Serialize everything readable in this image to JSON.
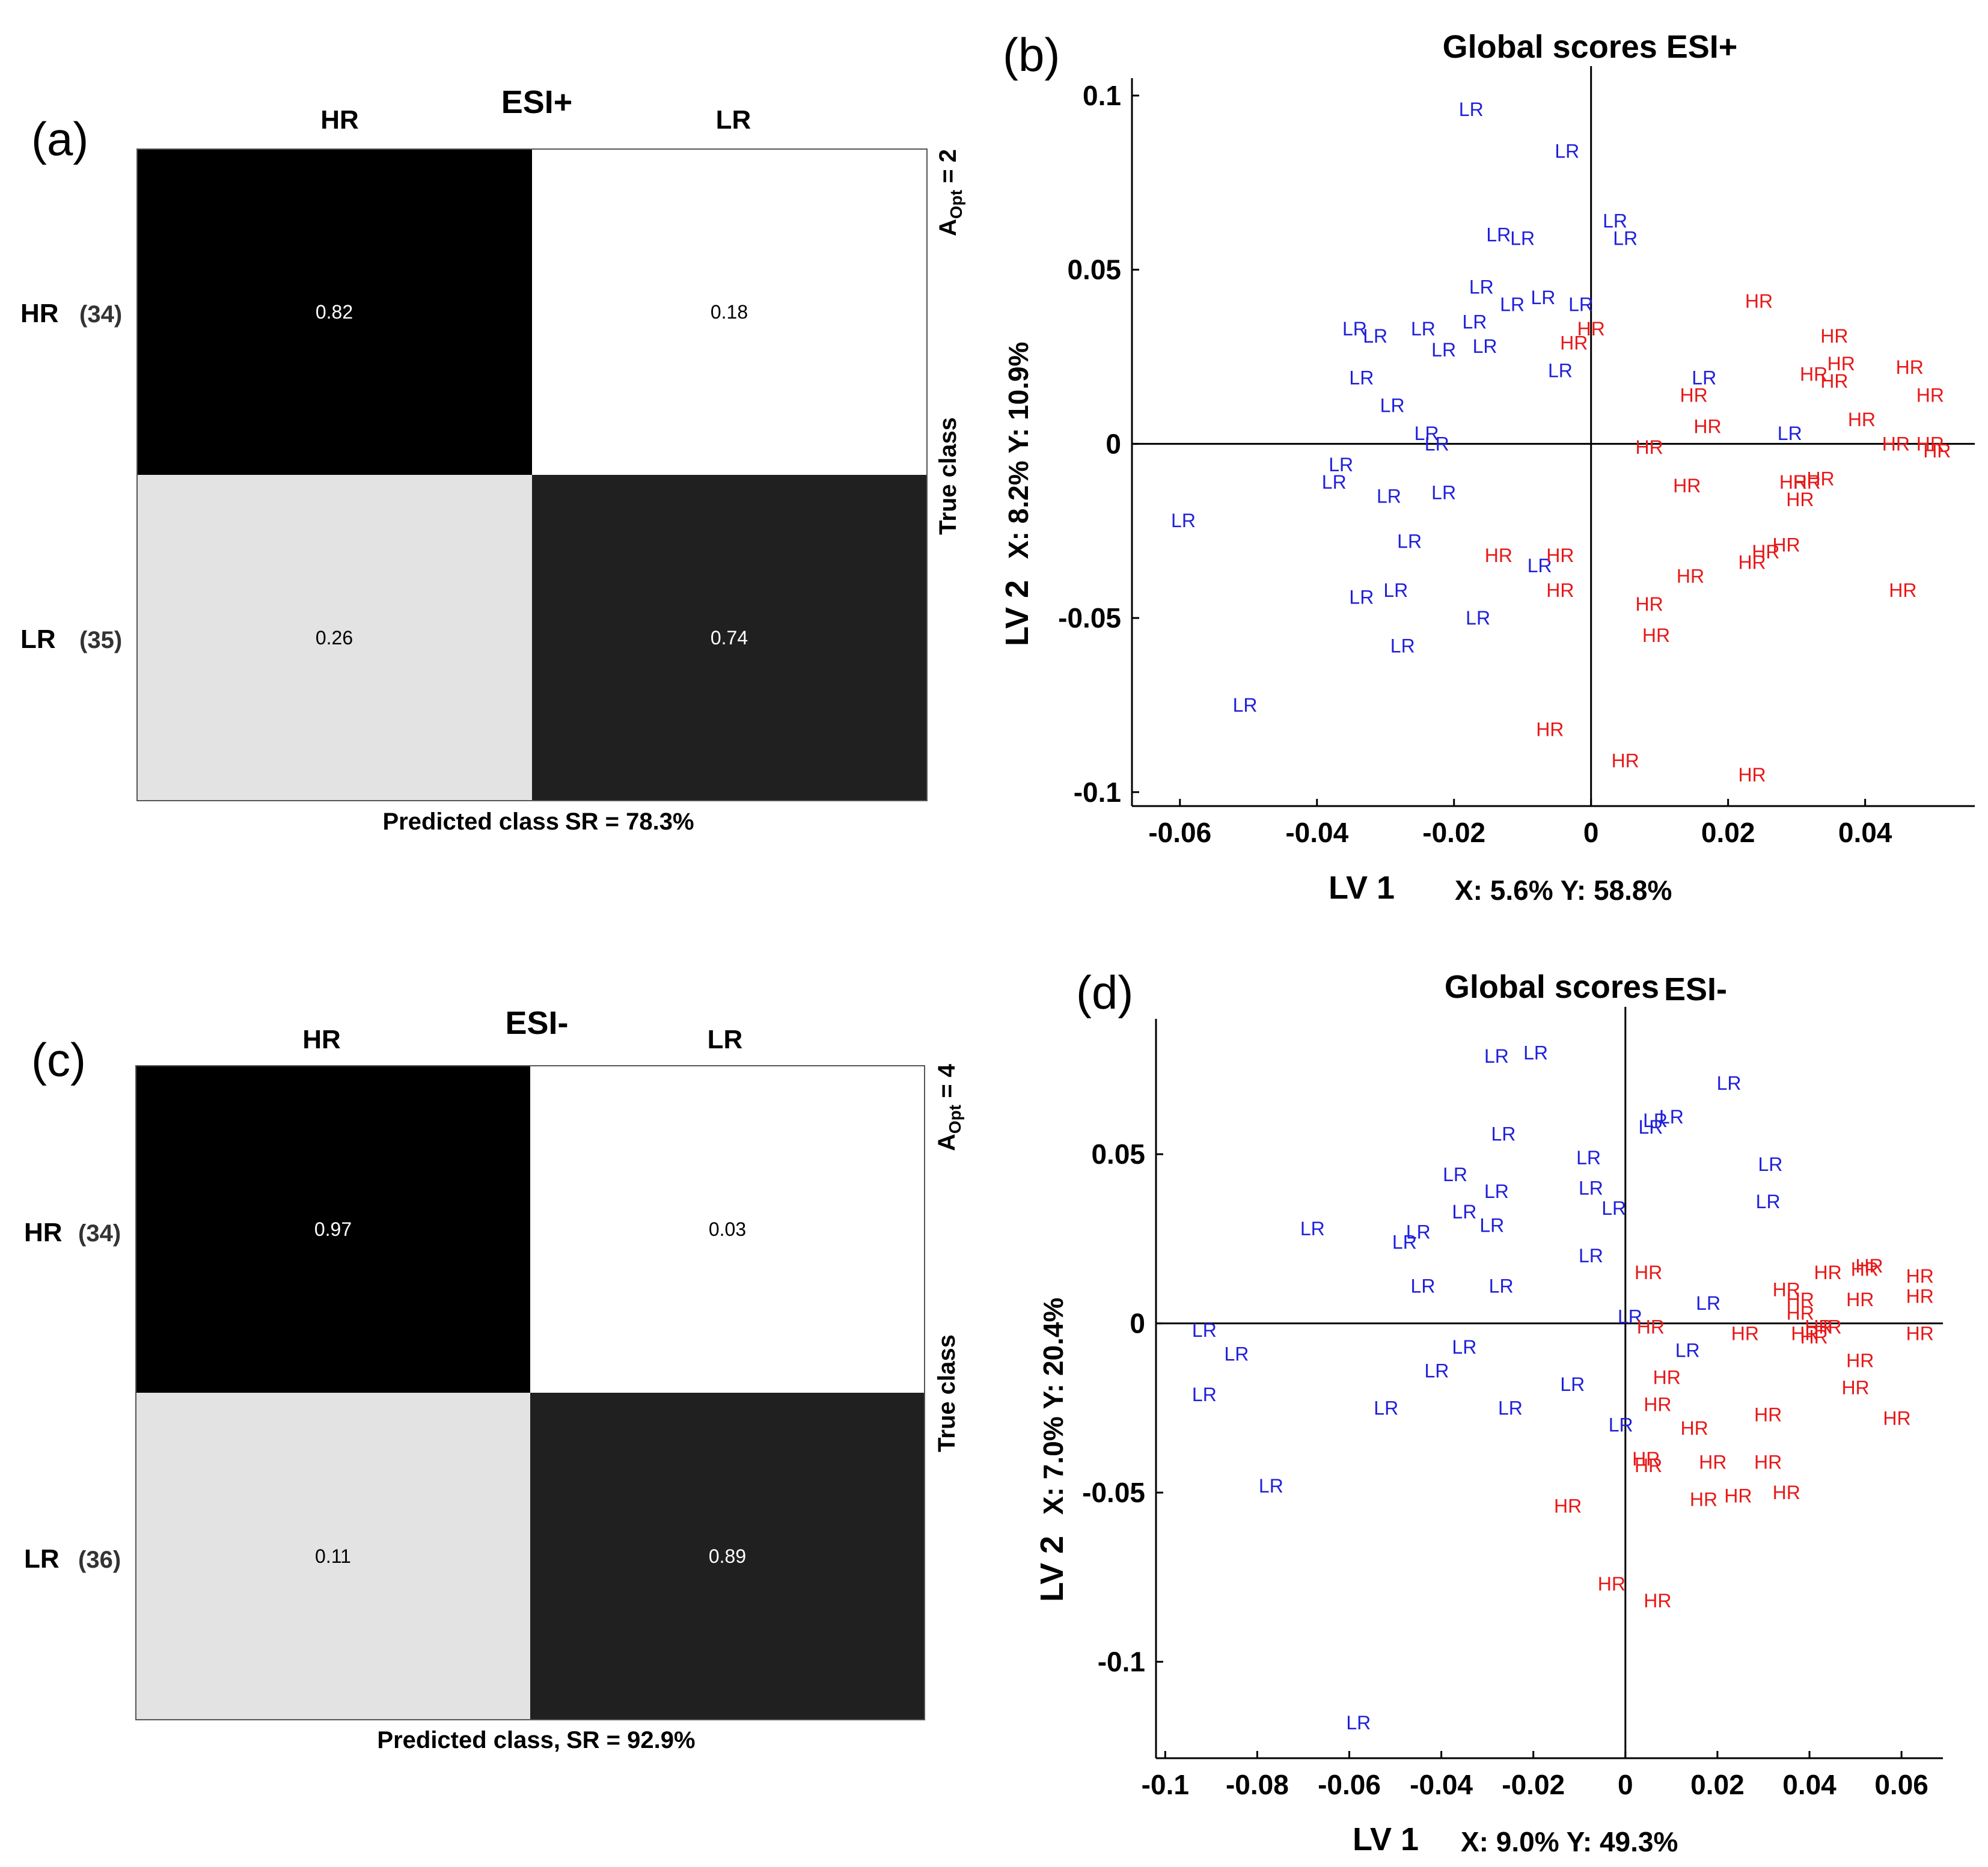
{
  "panels": {
    "a": {
      "label": "(a)",
      "title": "ESI+",
      "col_headers": [
        "HR",
        "LR"
      ],
      "row_headers": [
        {
          "name": "HR",
          "count": "(34)"
        },
        {
          "name": "LR",
          "count": "(35)"
        }
      ],
      "cells": [
        [
          "0.82",
          "0.18"
        ],
        [
          "0.26",
          "0.74"
        ]
      ],
      "predicted_label": "Predicted class",
      "sr_text": "SR = 78.3%",
      "true_class_label": "True class",
      "aopt": {
        "prefix": "A",
        "sub": "Opt",
        "value": " = 2"
      }
    },
    "c": {
      "label": "(c)",
      "title": "ESI-",
      "col_headers": [
        "HR",
        "LR"
      ],
      "row_headers": [
        {
          "name": "HR",
          "count": "(34)"
        },
        {
          "name": "LR",
          "count": "(36)"
        }
      ],
      "cells": [
        [
          "0.97",
          "0.03"
        ],
        [
          "0.11",
          "0.89"
        ]
      ],
      "predicted_label": "Predicted class,",
      "sr_text": "SR = 92.9%",
      "true_class_label": "True class",
      "aopt": {
        "prefix": "A",
        "sub": "Opt",
        "value": " = 4"
      }
    }
  },
  "chart_data": [
    {
      "panel": "(b)",
      "type": "scatter",
      "title": "Global scores ESI+",
      "xlabel": "LV 1",
      "xlabel_pct": "X: 5.6%  Y: 58.8%",
      "ylabel": "LV 2",
      "ylabel_pct": "X: 8.2%  Y: 10.9%",
      "xlim": [
        -0.067,
        0.056
      ],
      "ylim": [
        -0.104,
        0.105
      ],
      "xticks": [
        -0.06,
        -0.04,
        -0.02,
        0,
        0.02,
        0.04
      ],
      "xtick_labels": [
        "-0.06",
        "-0.04",
        "-0.02",
        "0",
        "0.02",
        "0.04"
      ],
      "yticks": [
        -0.1,
        -0.05,
        0,
        0.05,
        0.1
      ],
      "ytick_labels": [
        "-0.1",
        "-0.05",
        "0",
        "0.05",
        "0.1"
      ],
      "colors": {
        "LR": "#1f1fdc",
        "HR": "#e81818"
      },
      "series": [
        {
          "name": "LR",
          "points": [
            [
              -0.0175,
              0.096
            ],
            [
              -0.0035,
              0.084
            ],
            [
              0.0035,
              0.064
            ],
            [
              0.005,
              0.059
            ],
            [
              -0.0135,
              0.06
            ],
            [
              -0.01,
              0.059
            ],
            [
              -0.016,
              0.045
            ],
            [
              -0.0115,
              0.04
            ],
            [
              -0.007,
              0.042
            ],
            [
              -0.0015,
              0.04
            ],
            [
              -0.017,
              0.035
            ],
            [
              -0.0245,
              0.033
            ],
            [
              -0.0345,
              0.033
            ],
            [
              -0.0315,
              0.031
            ],
            [
              -0.0215,
              0.027
            ],
            [
              -0.0155,
              0.028
            ],
            [
              -0.0045,
              0.021
            ],
            [
              -0.0335,
              0.019
            ],
            [
              -0.029,
              0.011
            ],
            [
              -0.024,
              0.003
            ],
            [
              -0.0225,
              0.0
            ],
            [
              0.0165,
              0.019
            ],
            [
              0.029,
              0.003
            ],
            [
              -0.0365,
              -0.006
            ],
            [
              -0.0375,
              -0.011
            ],
            [
              -0.0295,
              -0.015
            ],
            [
              -0.0215,
              -0.014
            ],
            [
              -0.0595,
              -0.022
            ],
            [
              -0.0265,
              -0.028
            ],
            [
              -0.0075,
              -0.035
            ],
            [
              -0.0285,
              -0.042
            ],
            [
              -0.0335,
              -0.044
            ],
            [
              -0.0165,
              -0.05
            ],
            [
              -0.0275,
              -0.058
            ],
            [
              -0.0505,
              -0.075
            ]
          ]
        },
        {
          "name": "HR",
          "points": [
            [
              0.0245,
              0.041
            ],
            [
              0.0355,
              0.031
            ],
            [
              0.0365,
              0.023
            ],
            [
              0.0465,
              0.022
            ],
            [
              0.0325,
              0.02
            ],
            [
              0.0355,
              0.018
            ],
            [
              0.0495,
              0.014
            ],
            [
              0.015,
              0.014
            ],
            [
              0.0395,
              0.007
            ],
            [
              0.0085,
              -0.001
            ],
            [
              0.017,
              0.005
            ],
            [
              0.0445,
              0.0
            ],
            [
              0.0495,
              0.0
            ],
            [
              0.0505,
              -0.002
            ],
            [
              0.0,
              0.033
            ],
            [
              -0.0025,
              0.029
            ],
            [
              0.0335,
              -0.01
            ],
            [
              0.0295,
              -0.011
            ],
            [
              0.0315,
              -0.011
            ],
            [
              0.0305,
              -0.016
            ],
            [
              0.014,
              -0.012
            ],
            [
              0.0255,
              -0.031
            ],
            [
              0.0285,
              -0.029
            ],
            [
              0.0235,
              -0.034
            ],
            [
              0.0145,
              -0.038
            ],
            [
              0.0455,
              -0.042
            ],
            [
              -0.0135,
              -0.032
            ],
            [
              -0.0045,
              -0.032
            ],
            [
              -0.0045,
              -0.042
            ],
            [
              0.0085,
              -0.046
            ],
            [
              0.0095,
              -0.055
            ],
            [
              -0.006,
              -0.082
            ],
            [
              0.005,
              -0.091
            ],
            [
              0.0235,
              -0.095
            ]
          ]
        }
      ]
    },
    {
      "panel": "(d)",
      "type": "scatter",
      "title_part1": "Global scores",
      "title_part2": "ESI-",
      "xlabel": "LV 1",
      "xlabel_pct": "X: 9.0%  Y: 49.3%",
      "ylabel": "LV 2",
      "ylabel_pct": "X: 7.0%  Y: 20.4%",
      "xlim": [
        -0.102,
        0.069
      ],
      "ylim": [
        -0.1285,
        0.09
      ],
      "xticks": [
        -0.1,
        -0.08,
        -0.06,
        -0.04,
        -0.02,
        0,
        0.02,
        0.04,
        0.06
      ],
      "xtick_labels": [
        "-0.1",
        "-0.08",
        "-0.06",
        "-0.04",
        "-0.02",
        "0",
        "0.02",
        "0.04",
        "0.06"
      ],
      "yticks": [
        -0.1,
        -0.05,
        0,
        0.05
      ],
      "ytick_labels": [
        "-0.1",
        "-0.05",
        "0",
        "0.05"
      ],
      "colors": {
        "LR": "#1f1fdc",
        "HR": "#e81818"
      },
      "series": [
        {
          "name": "LR",
          "points": [
            [
              -0.028,
              0.079
            ],
            [
              -0.0195,
              0.08
            ],
            [
              0.0225,
              0.071
            ],
            [
              0.01,
              0.061
            ],
            [
              0.0065,
              0.06
            ],
            [
              0.0055,
              0.058
            ],
            [
              -0.0265,
              0.056
            ],
            [
              -0.008,
              0.049
            ],
            [
              0.0315,
              0.047
            ],
            [
              -0.037,
              0.044
            ],
            [
              -0.028,
              0.039
            ],
            [
              -0.0075,
              0.04
            ],
            [
              0.031,
              0.036
            ],
            [
              -0.035,
              0.033
            ],
            [
              -0.029,
              0.029
            ],
            [
              -0.068,
              0.028
            ],
            [
              -0.045,
              0.027
            ],
            [
              -0.048,
              0.024
            ],
            [
              -0.0025,
              0.034
            ],
            [
              -0.0075,
              0.02
            ],
            [
              -0.044,
              0.011
            ],
            [
              -0.027,
              0.011
            ],
            [
              0.018,
              0.006
            ],
            [
              0.001,
              0.002
            ],
            [
              -0.0915,
              -0.002
            ],
            [
              -0.0845,
              -0.009
            ],
            [
              -0.035,
              -0.007
            ],
            [
              0.0135,
              -0.008
            ],
            [
              -0.041,
              -0.014
            ],
            [
              -0.0115,
              -0.018
            ],
            [
              -0.0915,
              -0.021
            ],
            [
              -0.052,
              -0.025
            ],
            [
              -0.025,
              -0.025
            ],
            [
              -0.001,
              -0.03
            ],
            [
              -0.077,
              -0.048
            ],
            [
              -0.058,
              -0.118
            ]
          ]
        },
        {
          "name": "HR",
          "points": [
            [
              0.005,
              0.015
            ],
            [
              0.053,
              0.017
            ],
            [
              0.052,
              0.016
            ],
            [
              0.044,
              0.015
            ],
            [
              0.064,
              0.014
            ],
            [
              0.035,
              0.01
            ],
            [
              0.038,
              0.007
            ],
            [
              0.051,
              0.007
            ],
            [
              0.064,
              0.008
            ],
            [
              0.038,
              0.003
            ],
            [
              0.042,
              -0.001
            ],
            [
              0.044,
              -0.001
            ],
            [
              0.039,
              -0.003
            ],
            [
              0.041,
              -0.004
            ],
            [
              0.0055,
              -0.001
            ],
            [
              0.026,
              -0.003
            ],
            [
              0.064,
              -0.003
            ],
            [
              0.051,
              -0.011
            ],
            [
              0.009,
              -0.016
            ],
            [
              0.05,
              -0.019
            ],
            [
              0.007,
              -0.024
            ],
            [
              0.031,
              -0.027
            ],
            [
              0.059,
              -0.028
            ],
            [
              0.015,
              -0.031
            ],
            [
              0.0045,
              -0.04
            ],
            [
              0.019,
              -0.041
            ],
            [
              0.031,
              -0.041
            ],
            [
              0.005,
              -0.042
            ],
            [
              0.035,
              -0.05
            ],
            [
              0.0245,
              -0.051
            ],
            [
              0.017,
              -0.052
            ],
            [
              -0.0125,
              -0.054
            ],
            [
              -0.003,
              -0.077
            ],
            [
              0.007,
              -0.082
            ]
          ]
        }
      ]
    }
  ]
}
